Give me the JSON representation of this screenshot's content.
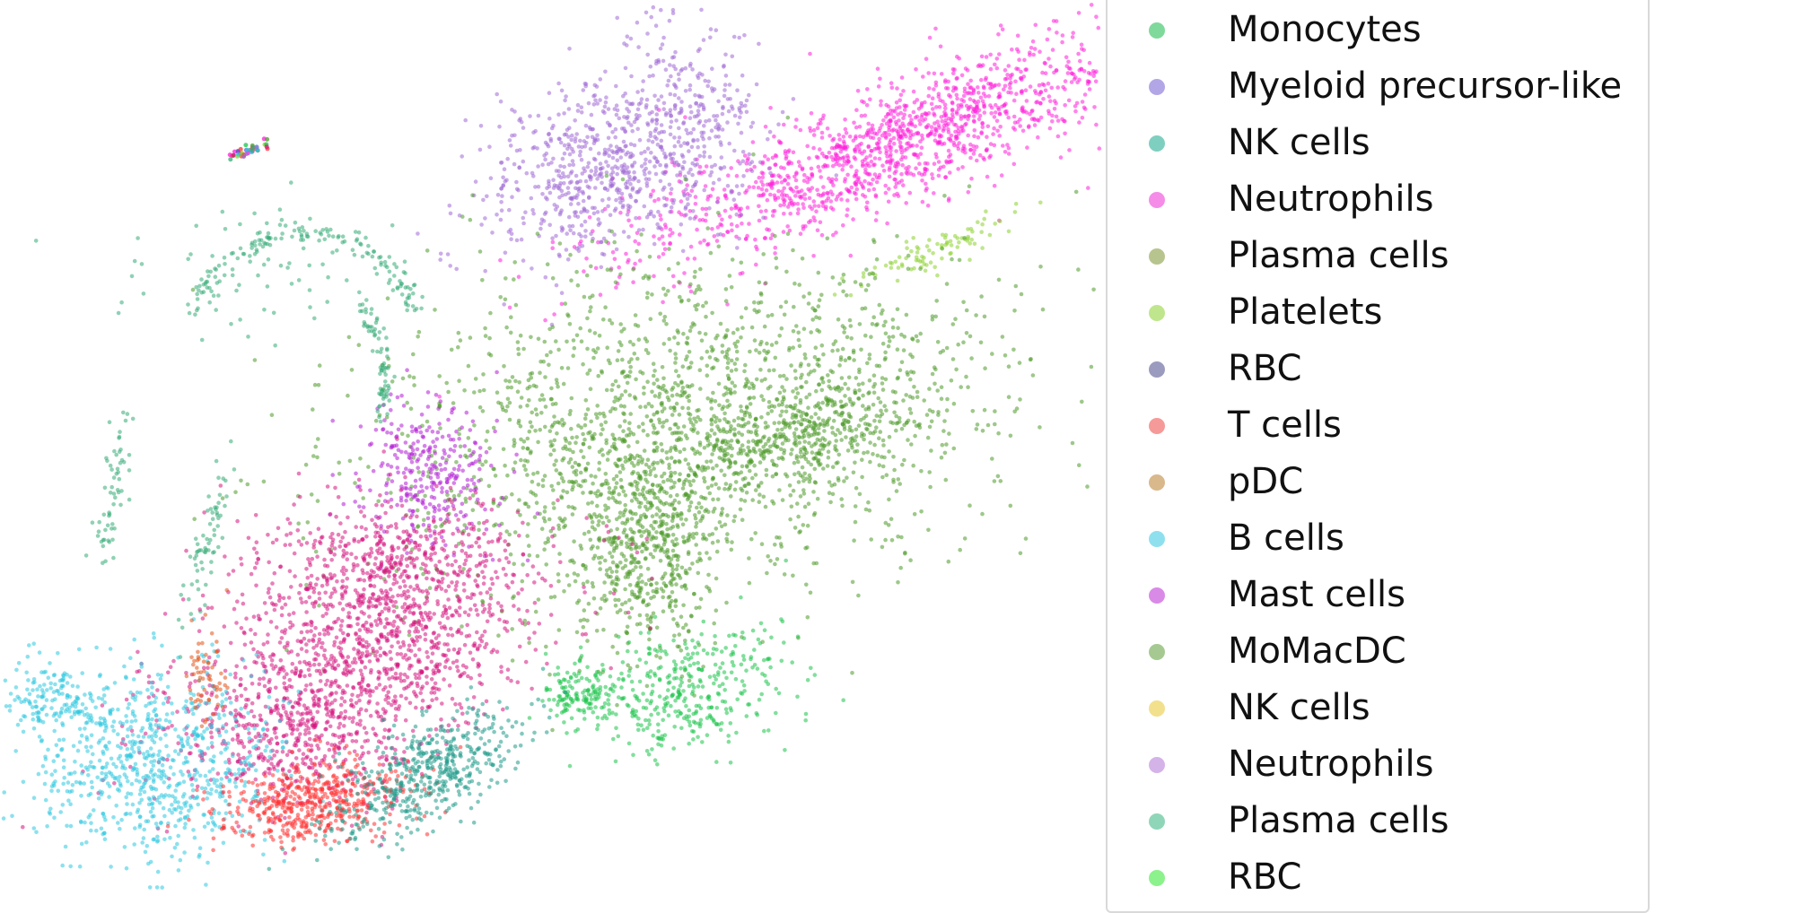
{
  "chart_data": {
    "type": "scatter",
    "title": "",
    "xlabel": "",
    "ylabel": "",
    "axes_visible": false,
    "grid": false,
    "legend_placement": "right",
    "legend": [
      {
        "label": "Monocytes",
        "color": "#7fd99b"
      },
      {
        "label": "Myeloid precursor-like",
        "color": "#b3a6e6"
      },
      {
        "label": "NK cells",
        "color": "#7fcfc0"
      },
      {
        "label": "Neutrophils",
        "color": "#f58ce8"
      },
      {
        "label": "Plasma cells",
        "color": "#b8c48e"
      },
      {
        "label": "Platelets",
        "color": "#bfe68c"
      },
      {
        "label": "RBC",
        "color": "#9b9bbf"
      },
      {
        "label": "T cells",
        "color": "#f59a98"
      },
      {
        "label": "pDC",
        "color": "#d9b88c"
      },
      {
        "label": "B cells",
        "color": "#8fe0ef"
      },
      {
        "label": "Mast cells",
        "color": "#d98ae6"
      },
      {
        "label": "MoMacDC",
        "color": "#a6c992"
      },
      {
        "label": "NK cells",
        "color": "#f2e08c"
      },
      {
        "label": "Neutrophils",
        "color": "#d4b3e8"
      },
      {
        "label": "Plasma cells",
        "color": "#8fd6b8"
      },
      {
        "label": "RBC",
        "color": "#8cf28c"
      }
    ],
    "clusters": [
      {
        "population": "Neutrophils",
        "color": "#ff1fdb",
        "count": 1400
      },
      {
        "population": "Myeloid precursor-like",
        "color": "#a06ad6",
        "count": 900
      },
      {
        "population": "Platelets",
        "color": "#8cd12e",
        "count": 90
      },
      {
        "population": "MoMacDC",
        "color": "#4f9a2a",
        "count": 2800
      },
      {
        "population": "Monocytes",
        "color": "#1bc44a",
        "count": 500
      },
      {
        "population": "Mast cells",
        "color": "#b21ed6",
        "count": 300
      },
      {
        "population": "NK cells",
        "color": "#35ab76",
        "count": 420
      },
      {
        "population": "T cells",
        "color": "#d6157f",
        "count": 2000
      },
      {
        "population": "B cells",
        "color": "#2ec8e0",
        "count": 900
      },
      {
        "population": "pDC",
        "color": "#e2561a",
        "count": 60
      },
      {
        "population": "RBC",
        "color": "#ff3030",
        "count": 500
      },
      {
        "population": "Plasma cells",
        "color": "#1f9b8b",
        "count": 500
      }
    ]
  }
}
